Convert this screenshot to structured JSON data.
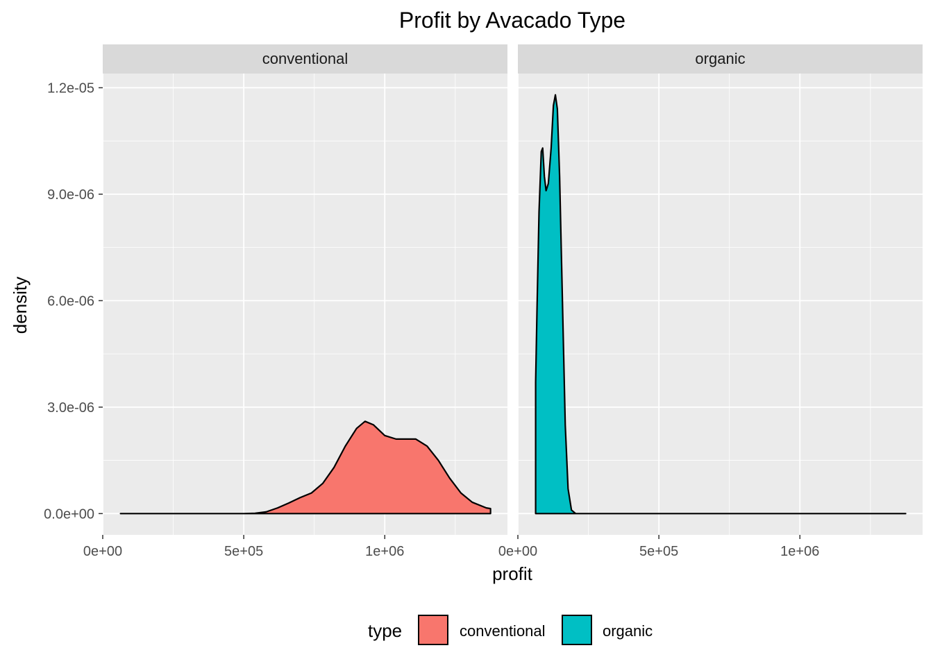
{
  "chart_data": {
    "type": "area",
    "title": "Profit by Avacado Type",
    "xlabel": "profit",
    "ylabel": "density",
    "x_ticks": [
      0,
      500000,
      1000000
    ],
    "x_tick_labels": [
      "0e+00",
      "5e+05",
      "1e+06"
    ],
    "y_ticks": [
      0,
      3e-06,
      6e-06,
      9e-06,
      1.2e-05
    ],
    "y_tick_labels": [
      "0.0e+00",
      "3.0e-06",
      "6.0e-06",
      "9.0e-06",
      "1.2e-05"
    ],
    "xlim": [
      0,
      1435000
    ],
    "ylim": [
      -6e-07,
      1.24e-05
    ],
    "grid": true,
    "legend_placement": "bottom",
    "legend_title": "type",
    "panels": [
      {
        "label": "conventional",
        "name": "conventional",
        "color": "#F8766D",
        "points": [
          [
            63000,
            0
          ],
          [
            300000,
            0
          ],
          [
            500000,
            0
          ],
          [
            540000,
            1e-08
          ],
          [
            580000,
            5e-08
          ],
          [
            620000,
            1.6e-07
          ],
          [
            660000,
            3e-07
          ],
          [
            700000,
            4.5e-07
          ],
          [
            740000,
            5.8e-07
          ],
          [
            780000,
            8.5e-07
          ],
          [
            820000,
            1.3e-06
          ],
          [
            860000,
            1.9e-06
          ],
          [
            900000,
            2.4e-06
          ],
          [
            930000,
            2.6e-06
          ],
          [
            960000,
            2.5e-06
          ],
          [
            1000000,
            2.2e-06
          ],
          [
            1040000,
            2.1e-06
          ],
          [
            1080000,
            2.1e-06
          ],
          [
            1110000,
            2.1e-06
          ],
          [
            1150000,
            1.9e-06
          ],
          [
            1190000,
            1.5e-06
          ],
          [
            1230000,
            1e-06
          ],
          [
            1270000,
            5.8e-07
          ],
          [
            1310000,
            3.2e-07
          ],
          [
            1360000,
            1.6e-07
          ],
          [
            1375000,
            1.4e-07
          ]
        ]
      },
      {
        "label": "organic",
        "name": "organic",
        "color": "#00BFC4",
        "points": [
          [
            63000,
            3.7e-06
          ],
          [
            68000,
            5.8e-06
          ],
          [
            75000,
            8.5e-06
          ],
          [
            83000,
            1.02e-05
          ],
          [
            88000,
            1.03e-05
          ],
          [
            94000,
            9.5e-06
          ],
          [
            100000,
            9.1e-06
          ],
          [
            108000,
            9.3e-06
          ],
          [
            118000,
            1.03e-05
          ],
          [
            126000,
            1.15e-05
          ],
          [
            133000,
            1.18e-05
          ],
          [
            140000,
            1.14e-05
          ],
          [
            148000,
            9.5e-06
          ],
          [
            158000,
            6e-06
          ],
          [
            168000,
            2.5e-06
          ],
          [
            178000,
            7e-07
          ],
          [
            190000,
            1e-07
          ],
          [
            205000,
            0
          ],
          [
            400000,
            0
          ],
          [
            1000000,
            0
          ],
          [
            1375000,
            0
          ]
        ]
      }
    ]
  }
}
